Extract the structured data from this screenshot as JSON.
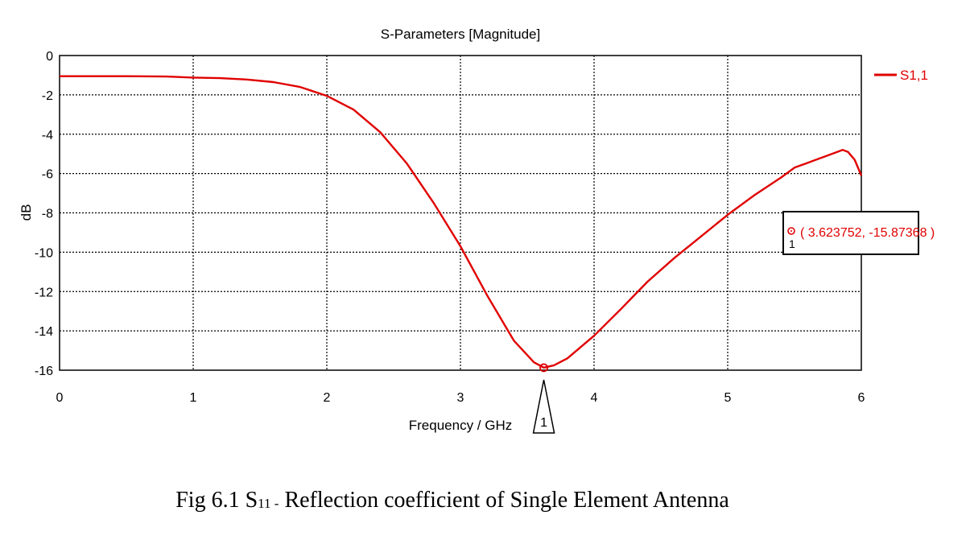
{
  "chart_data": {
    "type": "line",
    "title": "S-Parameters [Magnitude]",
    "xlabel": "Frequency / GHz",
    "ylabel": "dB",
    "xlim": [
      0,
      6
    ],
    "ylim": [
      -16,
      0
    ],
    "xticks": [
      "0",
      "1",
      "2",
      "3",
      "4",
      "5",
      "6"
    ],
    "yticks": [
      "0",
      "-2",
      "-4",
      "-6",
      "-8",
      "-10",
      "-12",
      "-14",
      "-16"
    ],
    "grid": true,
    "legend_position": "top-right",
    "series": [
      {
        "name": "S1,1",
        "color": "#e00000",
        "x": [
          0,
          0.5,
          0.8,
          1.0,
          1.2,
          1.4,
          1.6,
          1.8,
          2.0,
          2.2,
          2.4,
          2.6,
          2.8,
          3.0,
          3.2,
          3.4,
          3.55,
          3.624,
          3.7,
          3.8,
          4.0,
          4.2,
          4.4,
          4.6,
          4.8,
          5.0,
          5.2,
          5.4,
          5.5,
          5.6,
          5.7,
          5.8,
          5.86,
          5.9,
          5.95,
          6.0
        ],
        "y": [
          -1.05,
          -1.05,
          -1.07,
          -1.12,
          -1.15,
          -1.22,
          -1.35,
          -1.6,
          -2.05,
          -2.75,
          -3.9,
          -5.5,
          -7.5,
          -9.7,
          -12.2,
          -14.5,
          -15.6,
          -15.87,
          -15.75,
          -15.4,
          -14.25,
          -12.9,
          -11.5,
          -10.3,
          -9.2,
          -8.1,
          -7.1,
          -6.2,
          -5.7,
          -5.45,
          -5.2,
          -4.95,
          -4.8,
          -4.9,
          -5.3,
          -6.1
        ]
      }
    ],
    "marker": {
      "id": "1",
      "x": 3.623752,
      "y": -15.87368,
      "label": "( 3.623752, -15.87368 )"
    }
  },
  "caption": {
    "prefix": "Fig 6.1 S",
    "subscript": "11 -",
    "suffix": " Reflection coefficient of Single Element Antenna"
  }
}
